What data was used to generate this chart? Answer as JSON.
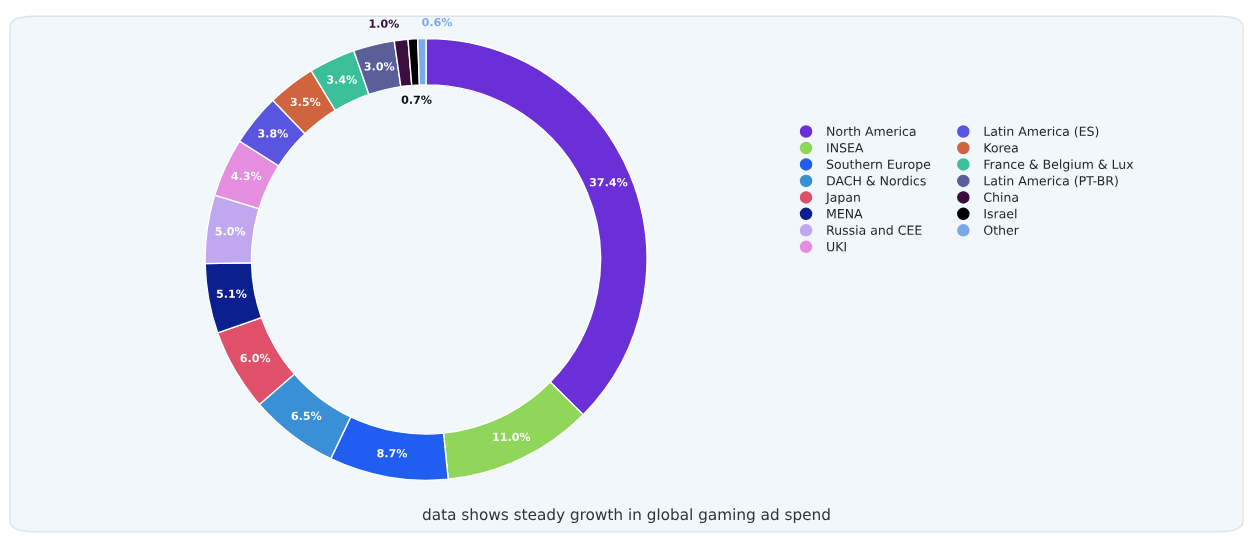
{
  "chart_data": {
    "type": "donut",
    "categories": [
      "North America",
      "INSEA",
      "Southern Europe",
      "DACH & Nordics",
      "Japan",
      "MENA",
      "Russia and CEE",
      "UKI",
      "Latin America (ES)",
      "Korea",
      "France & Belgium & Lux",
      "Latin America (PT-BR)",
      "China",
      "Israel",
      "Other"
    ],
    "values": [
      37.4,
      11.0,
      8.7,
      6.5,
      6.0,
      5.1,
      5.0,
      4.3,
      3.8,
      3.5,
      3.4,
      3.0,
      1.0,
      0.7,
      0.6
    ],
    "value_labels": [
      "37.4%",
      "11.0%",
      "8.7%",
      "6.5%",
      "6.0%",
      "5.1%",
      "5.0%",
      "4.3%",
      "3.8%",
      "3.5%",
      "3.4%",
      "3.0%",
      "1.0%",
      "0.7%",
      "0.6%"
    ],
    "colors": [
      "#6a2fd6",
      "#8fd65a",
      "#1f5ef0",
      "#3a8fd6",
      "#e0506a",
      "#0b1f8f",
      "#c0a8f0",
      "#e58ee0",
      "#5a55e0",
      "#d0643e",
      "#3bbf9a",
      "#5a5f9a",
      "#3a0f3f",
      "#000000",
      "#7aaae8"
    ],
    "legend": "right",
    "annotations": [
      "data shows steady growth in global gaming ad spend"
    ]
  }
}
